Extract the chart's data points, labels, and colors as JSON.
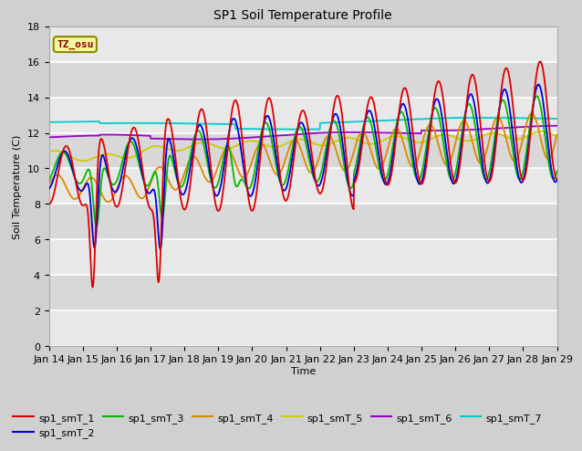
{
  "title": "SP1 Soil Temperature Profile",
  "xlabel": "Time",
  "ylabel": "Soil Temperature (C)",
  "ylim": [
    0,
    18
  ],
  "yticks": [
    0,
    2,
    4,
    6,
    8,
    10,
    12,
    14,
    16,
    18
  ],
  "xlim": [
    0,
    15
  ],
  "xtick_labels": [
    "Jan 14",
    "Jan 15",
    "Jan 16",
    "Jan 17",
    "Jan 18",
    "Jan 19",
    "Jan 20",
    "Jan 21",
    "Jan 22",
    "Jan 23",
    "Jan 24",
    "Jan 25",
    "Jan 26",
    "Jan 27",
    "Jan 28",
    "Jan 29"
  ],
  "tz_label": "TZ_osu",
  "fig_bg": "#d0d0d0",
  "plot_bg_light": "#e8e8e8",
  "plot_bg_dark": "#d8d8d8",
  "series_colors": {
    "sp1_smT_1": "#dd0000",
    "sp1_smT_2": "#0000dd",
    "sp1_smT_3": "#00bb00",
    "sp1_smT_4": "#dd8800",
    "sp1_smT_5": "#cccc00",
    "sp1_smT_6": "#9900cc",
    "sp1_smT_7": "#00cccc"
  },
  "legend_order": [
    "sp1_smT_1",
    "sp1_smT_2",
    "sp1_smT_3",
    "sp1_smT_4",
    "sp1_smT_5",
    "sp1_smT_6",
    "sp1_smT_7"
  ]
}
